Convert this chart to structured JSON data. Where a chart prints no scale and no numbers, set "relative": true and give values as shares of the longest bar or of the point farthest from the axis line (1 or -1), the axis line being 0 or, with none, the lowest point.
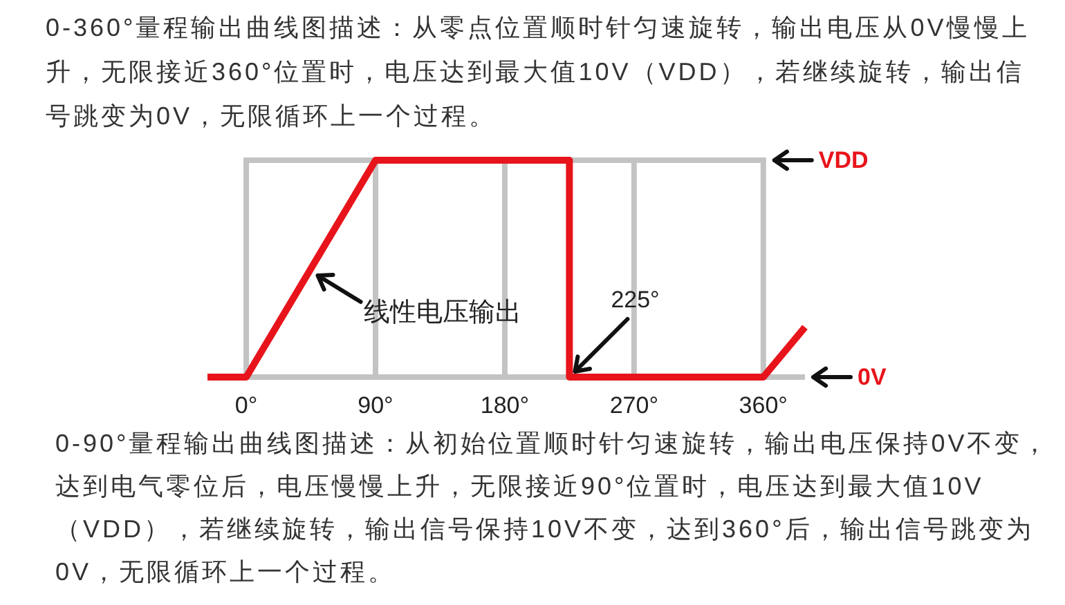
{
  "chart_data": {
    "type": "line",
    "title": "0-360°量程输出曲线图描述：从零点位置顺时针匀速旋转，输出电压从0V慢慢上升，无限接近360°位置时，电压达到最大值10V（VDD），若继续旋转，输出信号跳变为0V，无限循环上一个过程。",
    "annotations": [
      "VDD",
      {
        "text": "线性电压输出",
        "x": 45,
        "y": 0.5
      },
      {
        "text": "225°",
        "x": 225,
        "y": 0
      },
      "0V",
      "0-90°量程输出曲线图描述：从初始位置顺时针匀速旋转，输出电压保持0V不变，达到电气零位后，电压慢慢上升，无限接近90°位置时，电压达到最大值10V（VDD），若继续旋转，输出信号保持10V不变，达到360°后，输出信号跳变为0V，无限循环上一个过程。"
    ],
    "relative": true,
    "x": [
      -27,
      0,
      90,
      225,
      225,
      360,
      389
    ],
    "series": [
      {
        "color": "#e8141b",
        "values": [
          0,
          0,
          1,
          1,
          0,
          0,
          0.23
        ]
      }
    ],
    "xlim": [
      -27,
      389
    ],
    "xticks": [
      {
        "value": 0,
        "label": "0°"
      },
      {
        "value": 90,
        "label": "90°"
      },
      {
        "value": 180,
        "label": "180°"
      },
      {
        "value": 270,
        "label": "270°"
      },
      {
        "value": 360,
        "label": "360°"
      }
    ],
    "grid": "x",
    "line_style": "solid"
  }
}
